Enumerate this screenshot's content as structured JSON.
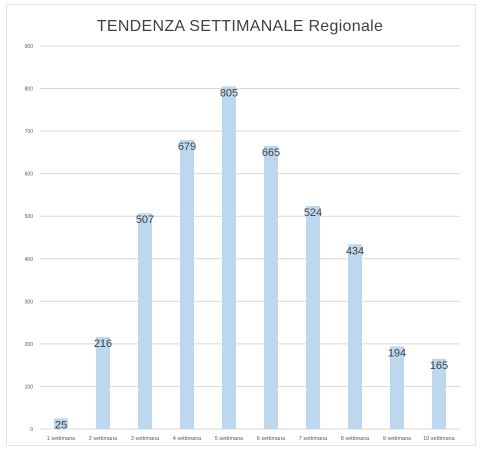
{
  "chart_data": {
    "type": "bar",
    "title": "TENDENZA SETTIMANALE Regionale",
    "categories": [
      "1 settimana",
      "2 settimana",
      "3 settimana",
      "4 settimana",
      "5 settimana",
      "6 settimana",
      "7 settimana",
      "8 settimana",
      "9 settimana",
      "10 settimana"
    ],
    "values": [
      25,
      216,
      507,
      679,
      805,
      665,
      524,
      434,
      194,
      165
    ],
    "ylim": [
      0,
      900
    ],
    "yticks": [
      "0",
      "100",
      "200",
      "300",
      "400",
      "500",
      "600",
      "700",
      "800",
      "900"
    ],
    "grid": true,
    "bar_color": "#bdd7ee",
    "grid_color": "#d9d9d9",
    "label_color": "#404040"
  }
}
